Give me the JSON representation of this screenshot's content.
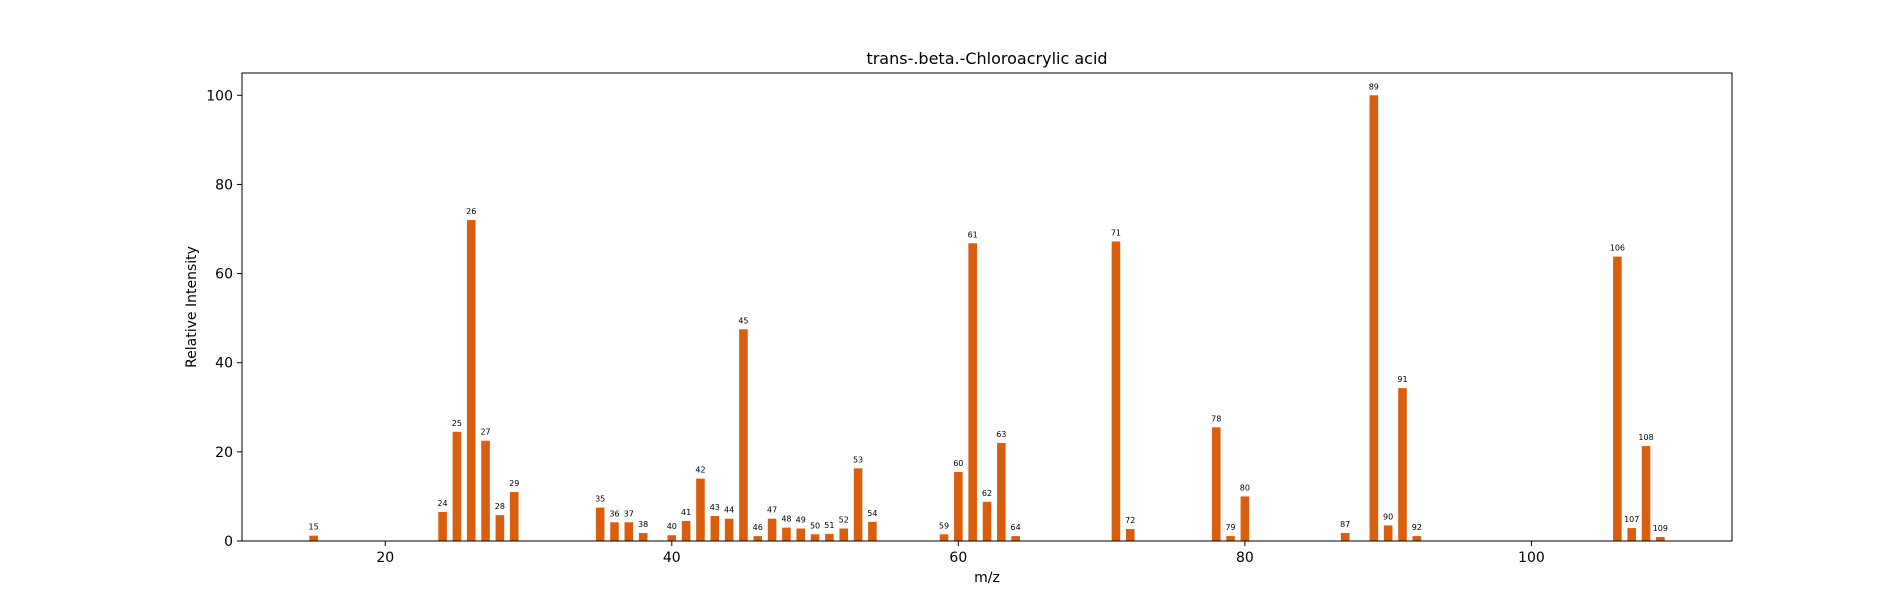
{
  "chart_data": {
    "type": "bar",
    "title": "trans-.beta.-Chloroacrylic acid",
    "xlabel": "m/z",
    "ylabel": "Relative Intensity",
    "xlim": [
      10,
      114
    ],
    "ylim": [
      0,
      105
    ],
    "xticks": [
      20,
      40,
      60,
      80,
      100
    ],
    "yticks": [
      0,
      20,
      40,
      60,
      80,
      100
    ],
    "grid": false,
    "color": "#d95f0e",
    "x": [
      15,
      24,
      25,
      26,
      27,
      28,
      29,
      35,
      36,
      37,
      38,
      40,
      41,
      42,
      43,
      44,
      45,
      46,
      47,
      48,
      49,
      50,
      51,
      52,
      53,
      54,
      59,
      60,
      61,
      62,
      63,
      64,
      71,
      72,
      78,
      79,
      80,
      87,
      89,
      90,
      91,
      92,
      106,
      107,
      108,
      109
    ],
    "values": [
      1.2,
      6.5,
      24.5,
      72,
      22.5,
      5.8,
      11,
      7.5,
      4.2,
      4.2,
      1.8,
      1.3,
      4.5,
      14,
      5.6,
      5,
      47.5,
      1.1,
      5,
      3,
      2.8,
      1.5,
      1.6,
      2.8,
      16.3,
      4.3,
      1.5,
      15.5,
      66.8,
      8.8,
      22,
      1.1,
      67.2,
      2.7,
      25.5,
      1.1,
      10,
      1.8,
      100,
      3.5,
      34.3,
      1.1,
      63.8,
      2.9,
      21.3,
      0.9
    ]
  }
}
